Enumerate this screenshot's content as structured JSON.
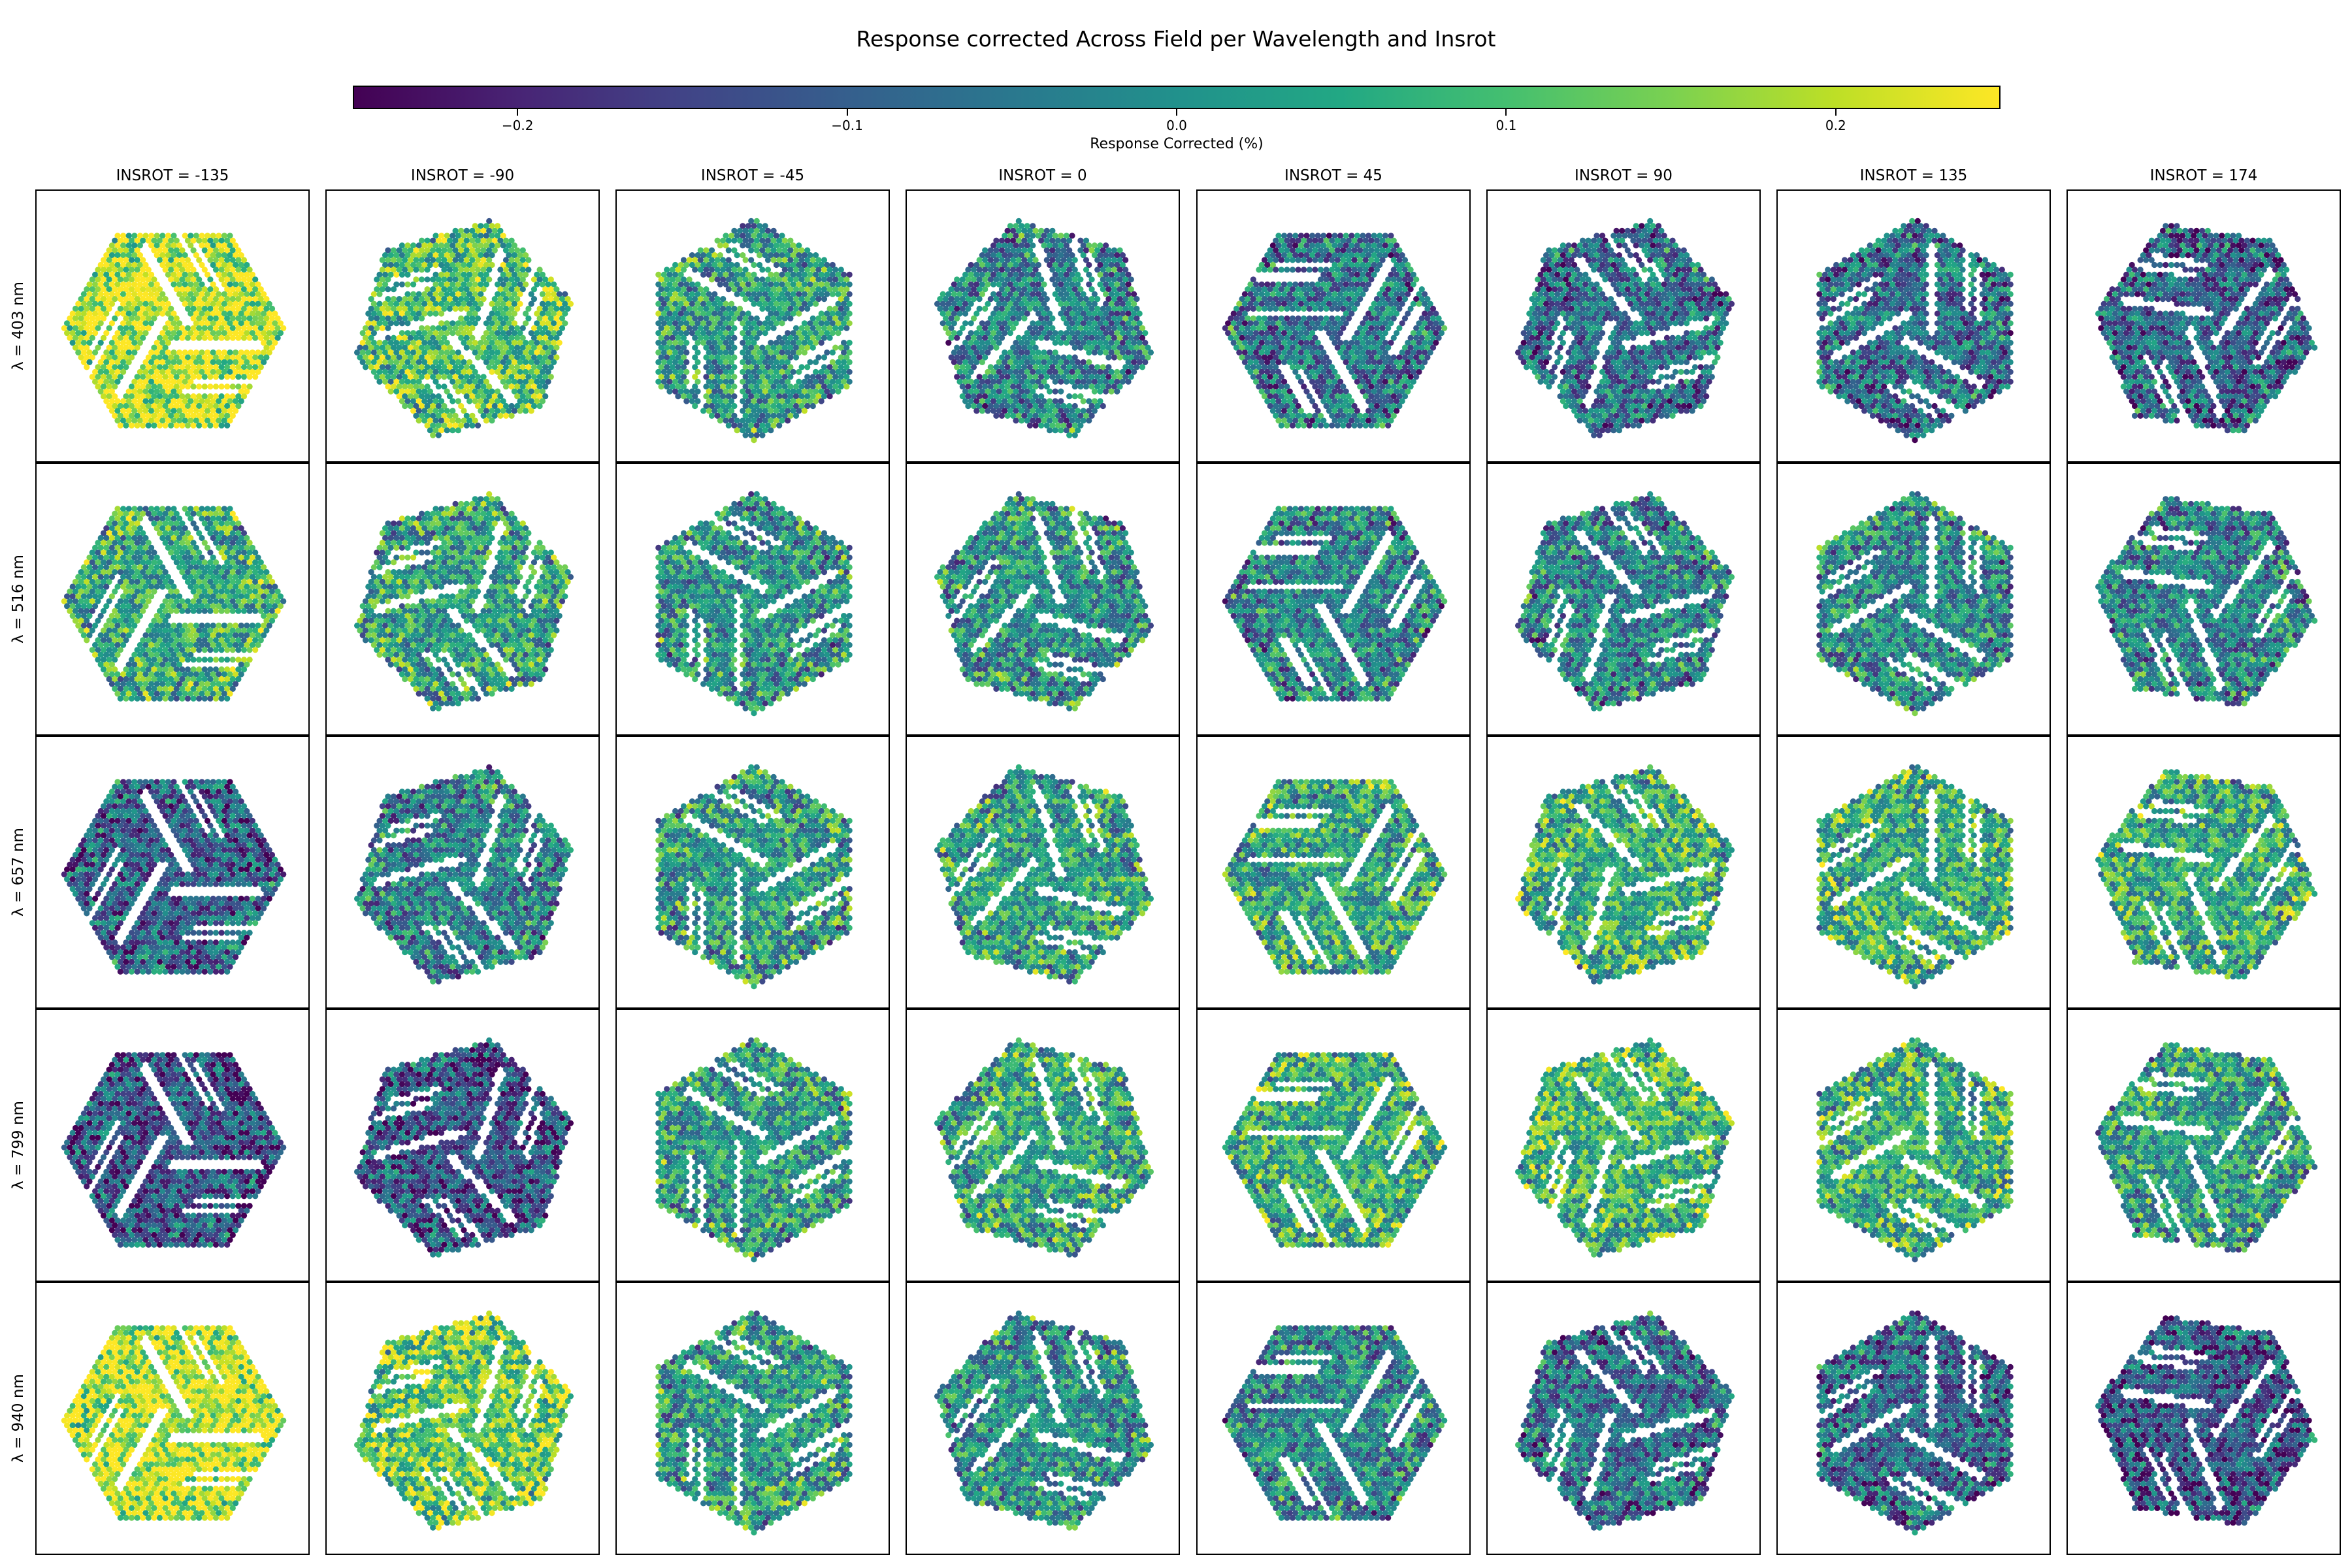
{
  "chart_data": {
    "type": "heatmap",
    "title": "Response corrected Across Field per Wavelength and Insrot",
    "colorbar": {
      "label": "Response Corrected (%)",
      "range": [
        -0.25,
        0.25
      ],
      "colormap": "viridis",
      "ticks": [
        {
          "value": -0.2,
          "label": "−0.2"
        },
        {
          "value": -0.1,
          "label": "−0.1"
        },
        {
          "value": 0.0,
          "label": "0.0"
        },
        {
          "value": 0.1,
          "label": "0.1"
        },
        {
          "value": 0.2,
          "label": "0.2"
        }
      ]
    },
    "columns": [
      "INSROT = -135",
      "INSROT = -90",
      "INSROT = -45",
      "INSROT = 0",
      "INSROT = 45",
      "INSROT = 90",
      "INSROT = 135",
      "INSROT = 174"
    ],
    "insrot_deg": [
      -135,
      -90,
      -45,
      0,
      45,
      90,
      135,
      174
    ],
    "rows": [
      "λ = 403 nm",
      "λ = 516 nm",
      "λ = 657 nm",
      "λ = 799 nm",
      "λ = 940 nm"
    ],
    "wavelengths_nm": [
      403,
      516,
      657,
      799,
      940
    ],
    "panel_mean_response": [
      [
        0.2,
        0.1,
        0.02,
        -0.03,
        -0.06,
        -0.07,
        -0.07,
        -0.09
      ],
      [
        0.05,
        0.03,
        0.0,
        0.0,
        -0.03,
        -0.03,
        -0.02,
        -0.03
      ],
      [
        -0.1,
        -0.03,
        0.02,
        0.03,
        0.04,
        0.06,
        0.06,
        0.05
      ],
      [
        -0.12,
        -0.12,
        0.02,
        0.04,
        0.06,
        0.07,
        0.06,
        0.02
      ],
      [
        0.2,
        0.13,
        0.02,
        0.0,
        -0.02,
        -0.07,
        -0.08,
        -0.12
      ]
    ],
    "x_ticks": [],
    "y_ticks": [],
    "grid": false
  },
  "colors": {
    "viridis_stops": [
      "#440154",
      "#482475",
      "#414487",
      "#355f8d",
      "#2a788e",
      "#21918c",
      "#22a884",
      "#44bf70",
      "#7ad151",
      "#bddf26",
      "#fde725"
    ],
    "panel_border": "#000000",
    "background": "#ffffff"
  }
}
